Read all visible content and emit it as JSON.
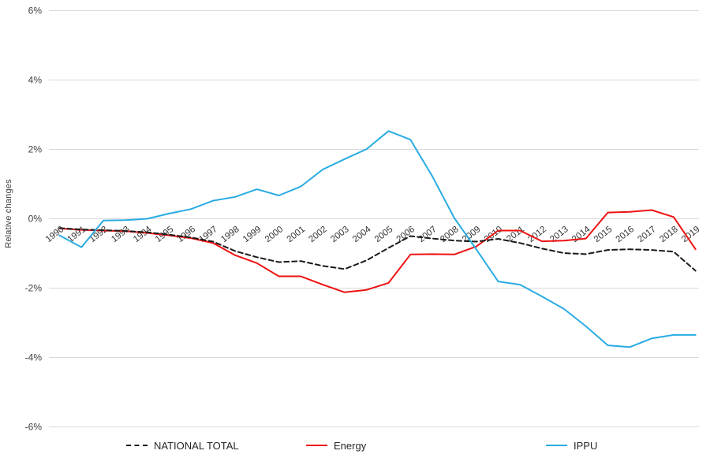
{
  "chart_data": {
    "type": "line",
    "title": "",
    "xlabel": "",
    "ylabel": "Relative changes",
    "ylim": [
      -6,
      6
    ],
    "grid": true,
    "legend_position": "bottom",
    "yticks": [
      {
        "value": 6,
        "label": "6%"
      },
      {
        "value": 4,
        "label": "4%"
      },
      {
        "value": 2,
        "label": "2%"
      },
      {
        "value": 0,
        "label": "0%"
      },
      {
        "value": -2,
        "label": "-2%"
      },
      {
        "value": -4,
        "label": "-4%"
      },
      {
        "value": -6,
        "label": "-6%"
      }
    ],
    "categories": [
      "1990",
      "1991",
      "1992",
      "1993",
      "1994",
      "1995",
      "1996",
      "1997",
      "1998",
      "1999",
      "2000",
      "2001",
      "2002",
      "2003",
      "2004",
      "2005",
      "2006",
      "2007",
      "2008",
      "2009",
      "2010",
      "2011",
      "2012",
      "2013",
      "2014",
      "2015",
      "2016",
      "2017",
      "2018",
      "2019"
    ],
    "series": [
      {
        "name": "Energy",
        "style": "solid",
        "color": "#ee1111",
        "values": [
          -0.28,
          -0.32,
          -0.34,
          -0.36,
          -0.41,
          -0.48,
          -0.56,
          -0.7,
          -1.05,
          -1.28,
          -1.66,
          -1.66,
          -1.9,
          -2.12,
          -2.05,
          -1.85,
          -1.03,
          -1.02,
          -1.03,
          -0.8,
          -0.34,
          -0.34,
          -0.65,
          -0.63,
          -0.57,
          0.18,
          0.2,
          0.25,
          0.05,
          -0.88
        ]
      },
      {
        "name": "NATIONAL TOTAL",
        "style": "dashed",
        "color": "#1a1a1a",
        "values": [
          -0.27,
          -0.31,
          -0.33,
          -0.35,
          -0.39,
          -0.46,
          -0.54,
          -0.66,
          -0.93,
          -1.11,
          -1.25,
          -1.22,
          -1.36,
          -1.45,
          -1.2,
          -0.84,
          -0.5,
          -0.57,
          -0.63,
          -0.66,
          -0.58,
          -0.7,
          -0.86,
          -0.99,
          -1.02,
          -0.9,
          -0.88,
          -0.9,
          -0.95,
          -1.5
        ]
      },
      {
        "name": "IPPU",
        "style": "solid",
        "color": "#29abe2",
        "values": [
          -0.48,
          -0.82,
          -0.05,
          -0.04,
          0.0,
          0.15,
          0.28,
          0.52,
          0.63,
          0.85,
          0.67,
          0.93,
          1.42,
          1.72,
          2.01,
          2.53,
          2.28,
          1.22,
          0.02,
          -0.88,
          -1.81,
          -1.9,
          -2.24,
          -2.6,
          -3.1,
          -3.65,
          -3.7,
          -3.45,
          -3.35,
          -3.35
        ]
      }
    ],
    "colors": {
      "gridline": "#d9d9d9",
      "tick_text": "#404040",
      "x_label_text": "#333333"
    }
  },
  "legend": {
    "national_total": "NATIONAL TOTAL",
    "energy": "Energy",
    "ippu": "IPPU"
  }
}
